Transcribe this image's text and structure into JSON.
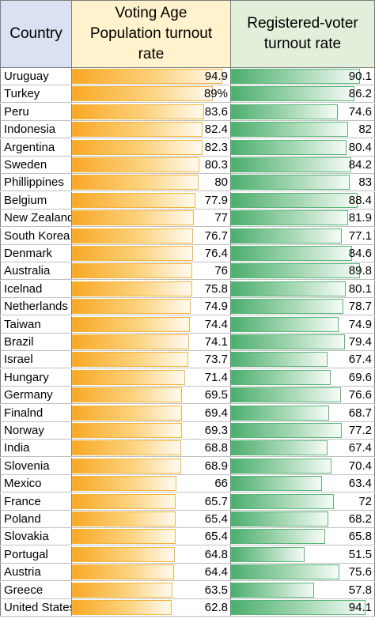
{
  "chart_data": {
    "type": "table",
    "headers": {
      "country": "Country",
      "vap": "Voting Age\nPopulation turnout\nrate",
      "registered": "Registered-voter\nturnout rate"
    },
    "value_max": 100,
    "colors": {
      "vap_bar": "#f9a825",
      "registered_bar": "#4cae6e",
      "country_header": "#d9e1f2",
      "vap_header": "#fff2cc",
      "registered_header": "#e2efda"
    },
    "rows": [
      {
        "country": "Uruguay",
        "vap": 94.9,
        "vap_label": "94.9",
        "registered": 90.1,
        "registered_label": "90.1"
      },
      {
        "country": "Turkey",
        "vap": 89,
        "vap_label": "89%",
        "registered": 86.2,
        "registered_label": "86.2"
      },
      {
        "country": "Peru",
        "vap": 83.6,
        "vap_label": "83.6",
        "registered": 74.6,
        "registered_label": "74.6"
      },
      {
        "country": "Indonesia",
        "vap": 82.4,
        "vap_label": "82.4",
        "registered": 82,
        "registered_label": "82"
      },
      {
        "country": "Argentina",
        "vap": 82.3,
        "vap_label": "82.3",
        "registered": 80.4,
        "registered_label": "80.4"
      },
      {
        "country": "Sweden",
        "vap": 80.3,
        "vap_label": "80.3",
        "registered": 84.2,
        "registered_label": "84.2"
      },
      {
        "country": "Phillippines",
        "vap": 80,
        "vap_label": "80",
        "registered": 83,
        "registered_label": "83"
      },
      {
        "country": "Belgium",
        "vap": 77.9,
        "vap_label": "77.9",
        "registered": 88.4,
        "registered_label": "88.4"
      },
      {
        "country": "New Zealand",
        "vap": 77,
        "vap_label": "77",
        "registered": 81.9,
        "registered_label": "81.9"
      },
      {
        "country": "South Korea",
        "vap": 76.7,
        "vap_label": "76.7",
        "registered": 77.1,
        "registered_label": "77.1"
      },
      {
        "country": "Denmark",
        "vap": 76.4,
        "vap_label": "76.4",
        "registered": 84.6,
        "registered_label": "84.6"
      },
      {
        "country": "Australia",
        "vap": 76,
        "vap_label": "76",
        "registered": 89.8,
        "registered_label": "89.8"
      },
      {
        "country": "Icelnad",
        "vap": 75.8,
        "vap_label": "75.8",
        "registered": 80.1,
        "registered_label": "80.1"
      },
      {
        "country": "Netherlands",
        "vap": 74.9,
        "vap_label": "74.9",
        "registered": 78.7,
        "registered_label": "78.7"
      },
      {
        "country": "Taiwan",
        "vap": 74.4,
        "vap_label": "74.4",
        "registered": 74.9,
        "registered_label": "74.9"
      },
      {
        "country": "Brazil",
        "vap": 74.1,
        "vap_label": "74.1",
        "registered": 79.4,
        "registered_label": "79.4"
      },
      {
        "country": "Israel",
        "vap": 73.7,
        "vap_label": "73.7",
        "registered": 67.4,
        "registered_label": "67.4"
      },
      {
        "country": "Hungary",
        "vap": 71.4,
        "vap_label": "71.4",
        "registered": 69.6,
        "registered_label": "69.6"
      },
      {
        "country": "Germany",
        "vap": 69.5,
        "vap_label": "69.5",
        "registered": 76.6,
        "registered_label": "76.6"
      },
      {
        "country": "Finalnd",
        "vap": 69.4,
        "vap_label": "69.4",
        "registered": 68.7,
        "registered_label": "68.7"
      },
      {
        "country": "Norway",
        "vap": 69.3,
        "vap_label": "69.3",
        "registered": 77.2,
        "registered_label": "77.2"
      },
      {
        "country": "India",
        "vap": 68.8,
        "vap_label": "68.8",
        "registered": 67.4,
        "registered_label": "67.4"
      },
      {
        "country": "Slovenia",
        "vap": 68.9,
        "vap_label": "68.9",
        "registered": 70.4,
        "registered_label": "70.4"
      },
      {
        "country": "Mexico",
        "vap": 66,
        "vap_label": "66",
        "registered": 63.4,
        "registered_label": "63.4"
      },
      {
        "country": "France",
        "vap": 65.7,
        "vap_label": "65.7",
        "registered": 72,
        "registered_label": "72"
      },
      {
        "country": "Poland",
        "vap": 65.4,
        "vap_label": "65.4",
        "registered": 68.2,
        "registered_label": "68.2"
      },
      {
        "country": "Slovakia",
        "vap": 65.4,
        "vap_label": "65.4",
        "registered": 65.8,
        "registered_label": "65.8"
      },
      {
        "country": "Portugal",
        "vap": 64.8,
        "vap_label": "64.8",
        "registered": 51.5,
        "registered_label": "51.5"
      },
      {
        "country": "Austria",
        "vap": 64.4,
        "vap_label": "64.4",
        "registered": 75.6,
        "registered_label": "75.6"
      },
      {
        "country": "Greece",
        "vap": 63.5,
        "vap_label": "63.5",
        "registered": 57.8,
        "registered_label": "57.8"
      },
      {
        "country": "United States",
        "vap": 62.8,
        "vap_label": "62.8",
        "registered": 94.1,
        "registered_label": "94.1"
      }
    ]
  }
}
